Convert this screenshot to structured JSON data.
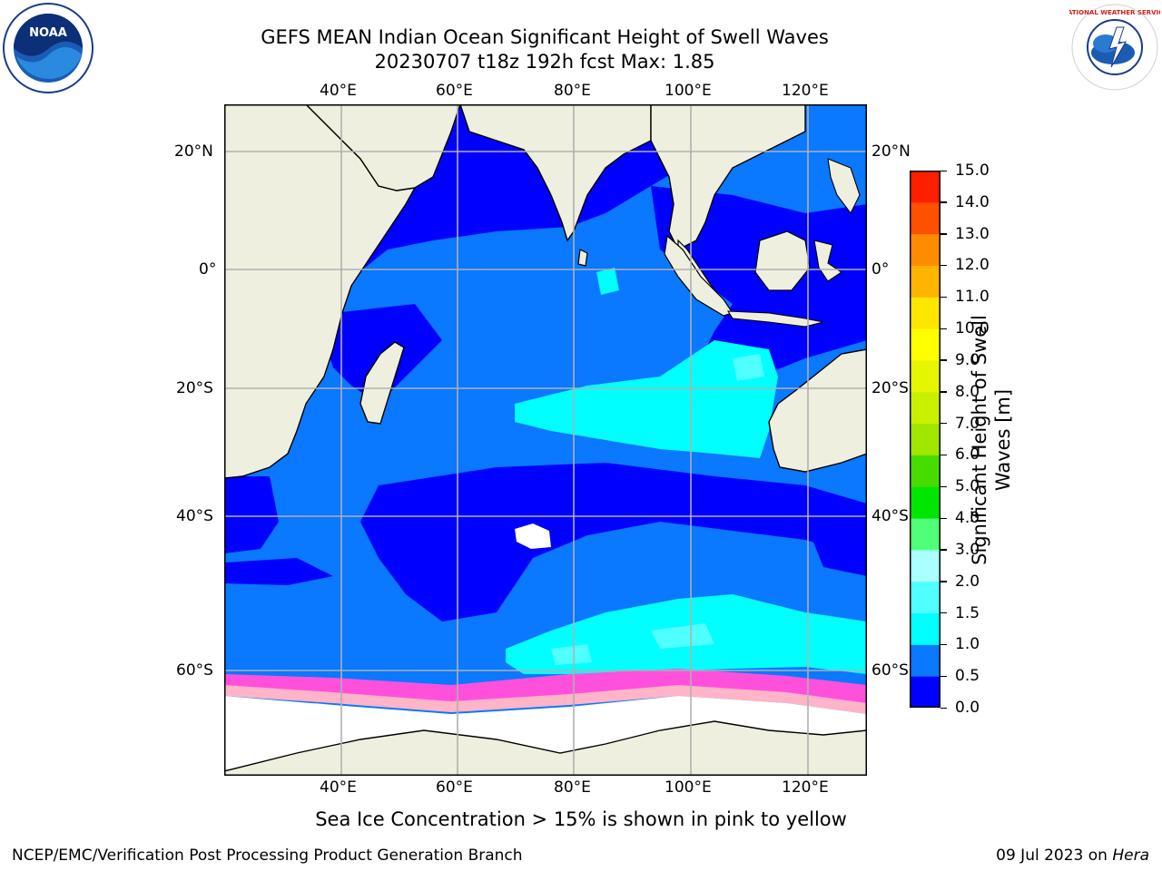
{
  "title": {
    "line1": "GEFS MEAN Indian Ocean Significant Height of Swell Waves",
    "line2": "20230707 t18z 192h fcst   Max: 1.85"
  },
  "map": {
    "lon_ticks": [
      "40°E",
      "60°E",
      "80°E",
      "100°E",
      "120°E"
    ],
    "lat_ticks": [
      "20°N",
      "0°",
      "20°S",
      "40°S",
      "60°S"
    ]
  },
  "colorbar": {
    "label_line1": "Significant Height of Swell",
    "label_line2": "Waves [m]",
    "ticks": [
      "0.0",
      "0.5",
      "1.0",
      "1.5",
      "2.0",
      "3.0",
      "4.0",
      "5.0",
      "6.0",
      "7.0",
      "8.0",
      "9.0",
      "10.0",
      "11.0",
      "12.0",
      "13.0",
      "14.0",
      "15.0"
    ],
    "colors": [
      "#0000ff",
      "#0a78ff",
      "#00ffff",
      "#50ffff",
      "#aaffff",
      "#50ff78",
      "#00e600",
      "#46dc00",
      "#a0e600",
      "#c8f000",
      "#e6f500",
      "#ffff00",
      "#ffe600",
      "#ffb400",
      "#ff8c00",
      "#ff5000",
      "#ff1e00"
    ]
  },
  "note": "Sea Ice Concentration > 15% is shown in pink to yellow",
  "footer": {
    "left": "NCEP/EMC/Verification Post Processing Product Generation Branch",
    "right_prefix": "09 Jul 2023 on ",
    "right_host": "Hera"
  },
  "logos": {
    "left_text": "NOAA",
    "right_text": "NATIONAL WEATHER SERVICE"
  },
  "colors": {
    "land": "#efefdf",
    "ice": "#ffffff",
    "grid": "#b0b0b0"
  }
}
